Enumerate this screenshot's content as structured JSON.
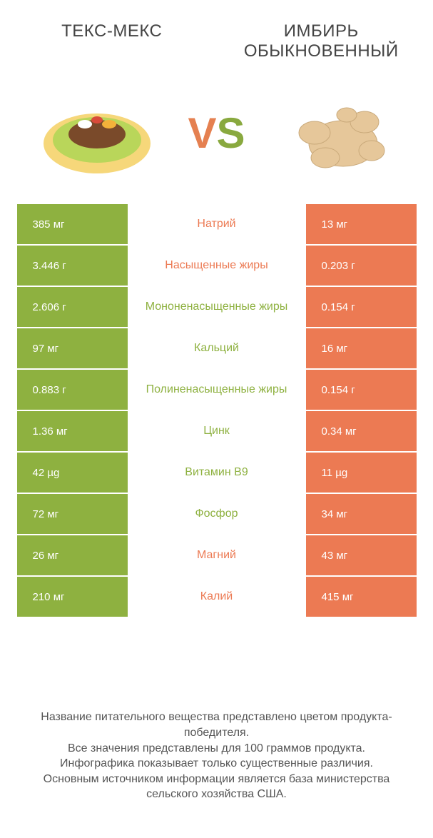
{
  "titles": {
    "left": "ТЕКС-МЕКС",
    "right": "ИМБИРЬ ОБЫКНОВЕННЫЙ"
  },
  "vs": {
    "v": "V",
    "s": "S"
  },
  "colors": {
    "green": "#8eb140",
    "orange": "#ec7a53"
  },
  "rows": [
    {
      "left": "385 мг",
      "mid": "Натрий",
      "mid_color": "orange",
      "right": "13 мг"
    },
    {
      "left": "3.446 г",
      "mid": "Насыщенные жиры",
      "mid_color": "orange",
      "right": "0.203 г"
    },
    {
      "left": "2.606 г",
      "mid": "Мононенасыщенные жиры",
      "mid_color": "green",
      "right": "0.154 г"
    },
    {
      "left": "97 мг",
      "mid": "Кальций",
      "mid_color": "green",
      "right": "16 мг"
    },
    {
      "left": "0.883 г",
      "mid": "Полиненасыщенные жиры",
      "mid_color": "green",
      "right": "0.154 г"
    },
    {
      "left": "1.36 мг",
      "mid": "Цинк",
      "mid_color": "green",
      "right": "0.34 мг"
    },
    {
      "left": "42 µg",
      "mid": "Витамин B9",
      "mid_color": "green",
      "right": "11 µg"
    },
    {
      "left": "72 мг",
      "mid": "Фосфор",
      "mid_color": "green",
      "right": "34 мг"
    },
    {
      "left": "26 мг",
      "mid": "Магний",
      "mid_color": "orange",
      "right": "43 мг"
    },
    {
      "left": "210 мг",
      "mid": "Калий",
      "mid_color": "orange",
      "right": "415 мг"
    }
  ],
  "footer": {
    "l1": "Название питательного вещества представлено цветом продукта-победителя.",
    "l2": "Все значения представлены для 100 граммов продукта.",
    "l3": "Инфографика показывает только существенные различия.",
    "l4": "Основным источником информации является база министерства сельского хозяйства США."
  }
}
